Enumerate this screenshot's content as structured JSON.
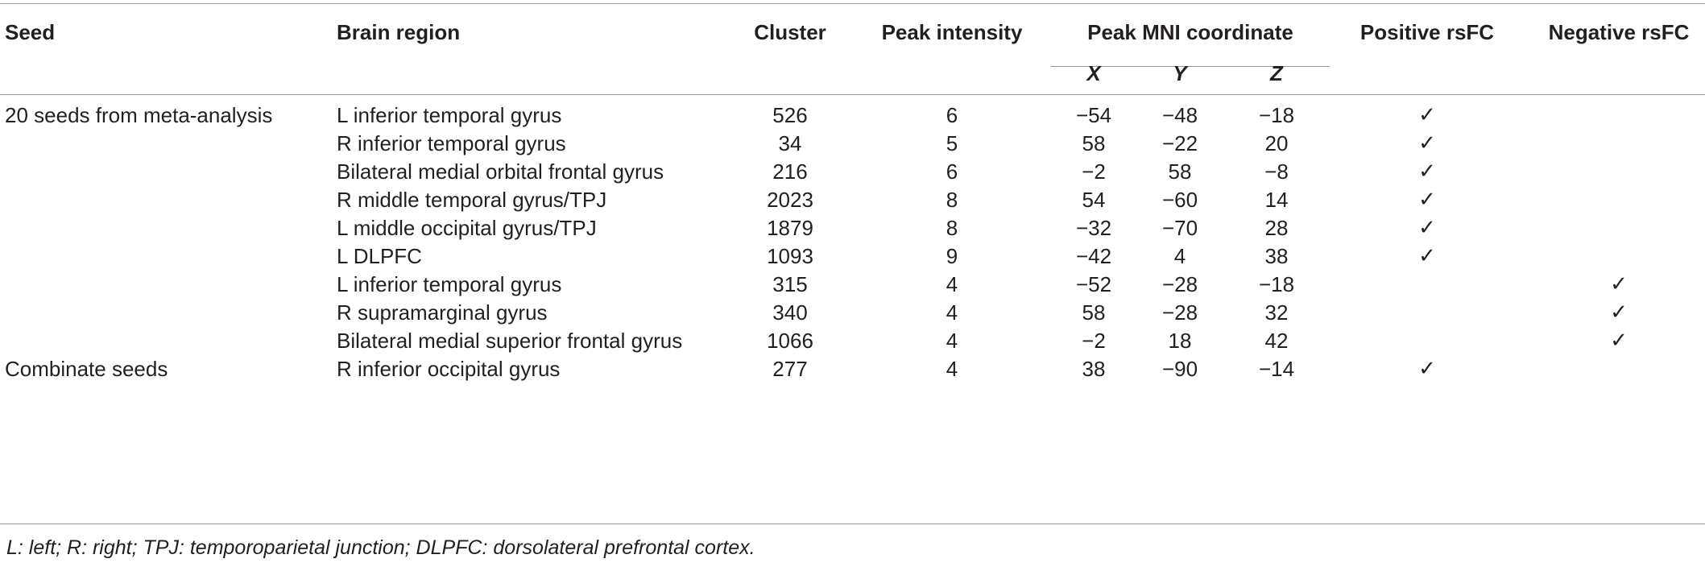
{
  "headers": {
    "seed": "Seed",
    "region": "Brain region",
    "cluster": "Cluster",
    "peak_intensity": "Peak intensity",
    "peak_mni": "Peak MNI coordinate",
    "x": "X",
    "y": "Y",
    "z": "Z",
    "positive": "Positive rsFC",
    "negative": "Negative rsFC"
  },
  "rows": [
    {
      "seed": "20 seeds from meta-analysis",
      "region": "L inferior temporal gyrus",
      "cluster": "526",
      "peak": "6",
      "x": "−54",
      "y": "−48",
      "z": "−18",
      "pos": "✓",
      "neg": ""
    },
    {
      "seed": "",
      "region": "R inferior temporal gyrus",
      "cluster": "34",
      "peak": "5",
      "x": "58",
      "y": "−22",
      "z": "20",
      "pos": "✓",
      "neg": ""
    },
    {
      "seed": "",
      "region": "Bilateral medial orbital frontal gyrus",
      "cluster": "216",
      "peak": "6",
      "x": "−2",
      "y": "58",
      "z": "−8",
      "pos": "✓",
      "neg": ""
    },
    {
      "seed": "",
      "region": "R middle temporal gyrus/TPJ",
      "cluster": "2023",
      "peak": "8",
      "x": "54",
      "y": "−60",
      "z": "14",
      "pos": "✓",
      "neg": ""
    },
    {
      "seed": "",
      "region": "L middle occipital gyrus/TPJ",
      "cluster": "1879",
      "peak": "8",
      "x": "−32",
      "y": "−70",
      "z": "28",
      "pos": "✓",
      "neg": ""
    },
    {
      "seed": "",
      "region": "L DLPFC",
      "cluster": "1093",
      "peak": "9",
      "x": "−42",
      "y": "4",
      "z": "38",
      "pos": "✓",
      "neg": ""
    },
    {
      "seed": "",
      "region": "L inferior temporal gyrus",
      "cluster": "315",
      "peak": "4",
      "x": "−52",
      "y": "−28",
      "z": "−18",
      "pos": "",
      "neg": "✓"
    },
    {
      "seed": "",
      "region": "R supramarginal gyrus",
      "cluster": "340",
      "peak": "4",
      "x": "58",
      "y": "−28",
      "z": "32",
      "pos": "",
      "neg": "✓"
    },
    {
      "seed": "",
      "region": "Bilateral medial superior frontal gyrus",
      "cluster": "1066",
      "peak": "4",
      "x": "−2",
      "y": "18",
      "z": "42",
      "pos": "",
      "neg": "✓"
    },
    {
      "seed": "Combinate seeds",
      "region": "R inferior occipital gyrus",
      "cluster": "277",
      "peak": "4",
      "x": "38",
      "y": "−90",
      "z": "−14",
      "pos": "✓",
      "neg": ""
    }
  ],
  "footnote": "L: left; R: right; TPJ: temporoparietal junction; DLPFC: dorsolateral prefrontal cortex."
}
